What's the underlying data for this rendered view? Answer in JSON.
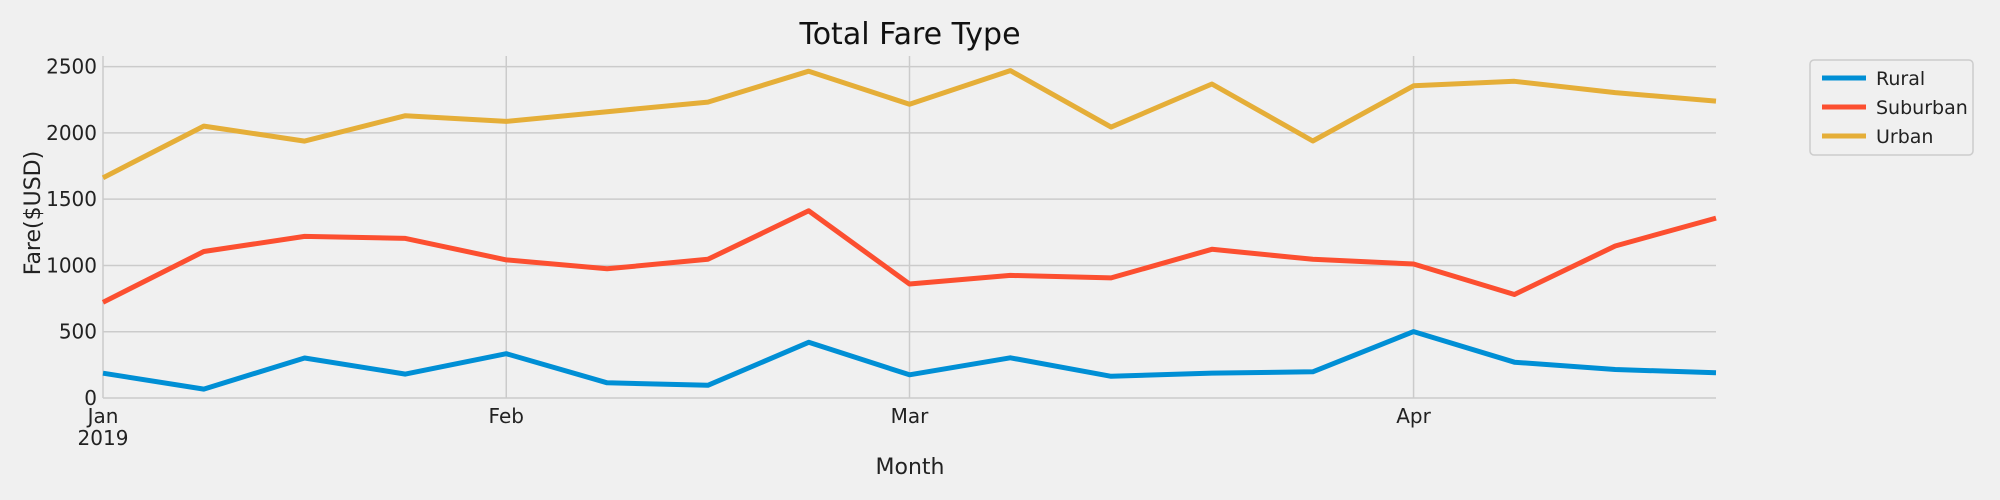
{
  "chart_data": {
    "type": "line",
    "title": "Total Fare Type",
    "xlabel": "Month",
    "ylabel": "Fare($USD)",
    "x": [
      "2019-01-06",
      "2019-01-13",
      "2019-01-20",
      "2019-01-27",
      "2019-02-03",
      "2019-02-10",
      "2019-02-17",
      "2019-02-24",
      "2019-03-03",
      "2019-03-10",
      "2019-03-17",
      "2019-03-24",
      "2019-03-31",
      "2019-04-07",
      "2019-04-14",
      "2019-04-21",
      "2019-04-28"
    ],
    "xlim": [
      "2019-01-06",
      "2019-04-28"
    ],
    "ylim": [
      0,
      2580
    ],
    "y_ticks": [
      0,
      500,
      1000,
      1500,
      2000,
      2500
    ],
    "x_ticks": [
      {
        "date": "2019-01-06",
        "label": "Jan",
        "sublabel": "2019"
      },
      {
        "date": "2019-02-03",
        "label": "Feb",
        "sublabel": ""
      },
      {
        "date": "2019-03-03",
        "label": "Mar",
        "sublabel": ""
      },
      {
        "date": "2019-04-07",
        "label": "Apr",
        "sublabel": ""
      }
    ],
    "grid": true,
    "legend_position": "outside top-right",
    "series": [
      {
        "name": "Rural",
        "color": "#008fd5",
        "values": [
          187,
          67,
          302,
          180,
          334,
          115,
          96,
          420,
          175,
          303,
          164,
          188,
          198,
          501,
          270,
          215,
          190
        ]
      },
      {
        "name": "Suburban",
        "color": "#fc4f30",
        "values": [
          722,
          1105,
          1219,
          1204,
          1042,
          975,
          1046,
          1412,
          860,
          925,
          906,
          1122,
          1046,
          1011,
          781,
          1147,
          1357
        ]
      },
      {
        "name": "Urban",
        "color": "#e5ae38",
        "values": [
          1661,
          2051,
          1938,
          2130,
          2087,
          2160,
          2232,
          2465,
          2216,
          2470,
          2044,
          2369,
          1939,
          2355,
          2389,
          2304,
          2240
        ]
      }
    ]
  }
}
